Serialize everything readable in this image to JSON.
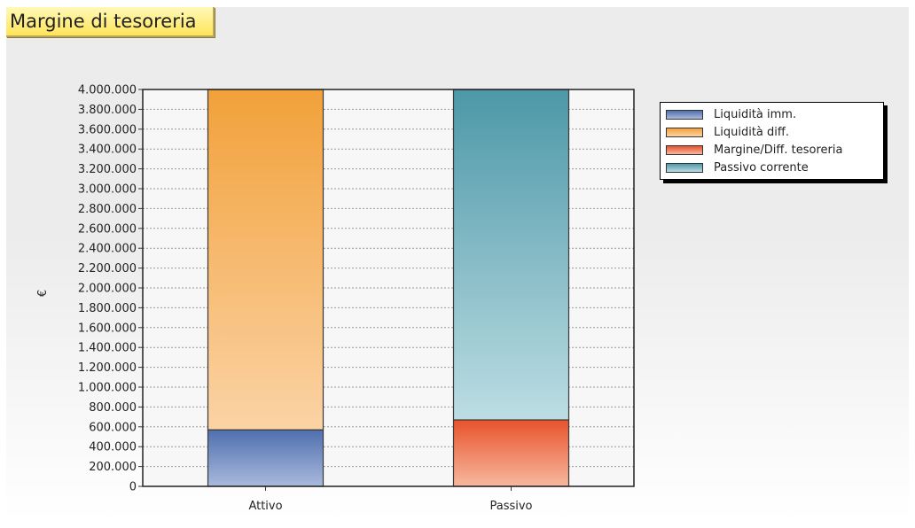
{
  "title": "Margine di tesoreria",
  "chart_data": {
    "type": "bar",
    "stacked": true,
    "categories": [
      "Attivo",
      "Passivo"
    ],
    "ylabel": "€",
    "ylim": [
      0,
      4000000
    ],
    "ytick_step": 200000,
    "y_ticks": [
      "0",
      "200.000",
      "400.000",
      "600.000",
      "800.000",
      "1.000.000",
      "1.200.000",
      "1.400.000",
      "1.600.000",
      "1.800.000",
      "2.000.000",
      "2.200.000",
      "2.400.000",
      "2.600.000",
      "2.800.000",
      "3.000.000",
      "3.200.000",
      "3.400.000",
      "3.600.000",
      "3.800.000",
      "4.000.000"
    ],
    "grid": true,
    "legend_position": "right",
    "series": [
      {
        "name": "Liquidità imm.",
        "values": [
          570000,
          0
        ],
        "color": "#4f6fae",
        "color_light": "#a9b9dc"
      },
      {
        "name": "Liquidità diff.",
        "values": [
          3500000,
          0
        ],
        "color": "#f2a13a",
        "color_light": "#fbd3a5"
      },
      {
        "name": "Margine/Diff. tesoreria",
        "values": [
          0,
          670000
        ],
        "color": "#e8532b",
        "color_light": "#f7b89f"
      },
      {
        "name": "Passivo corrente",
        "values": [
          0,
          3400000
        ],
        "color": "#4d98a8",
        "color_light": "#bcdde3"
      }
    ]
  }
}
